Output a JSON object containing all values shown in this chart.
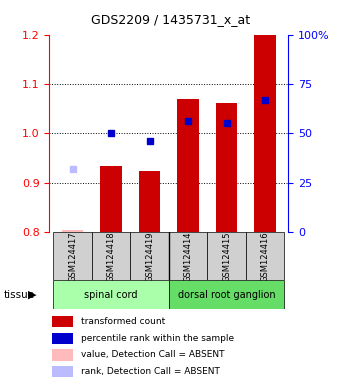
{
  "title": "GDS2209 / 1435731_x_at",
  "samples": [
    "GSM124417",
    "GSM124418",
    "GSM124419",
    "GSM124414",
    "GSM124415",
    "GSM124416"
  ],
  "tissue_groups": [
    {
      "label": "spinal cord",
      "start": 0,
      "end": 3,
      "color": "#aaffaa"
    },
    {
      "label": "dorsal root ganglion",
      "start": 3,
      "end": 6,
      "color": "#66dd66"
    }
  ],
  "red_values": [
    0.805,
    0.935,
    0.925,
    1.07,
    1.062,
    1.205
  ],
  "blue_values": [
    null,
    1.0,
    0.985,
    1.025,
    1.022,
    1.068
  ],
  "absent_red_idx": [
    0
  ],
  "absent_blue_idx": [
    0
  ],
  "absent_blue_val": 0.928,
  "ylim_left": [
    0.8,
    1.2
  ],
  "ylim_right": [
    0,
    100
  ],
  "yticks_left": [
    0.8,
    0.9,
    1.0,
    1.1,
    1.2
  ],
  "yticks_right": [
    0,
    25,
    50,
    75,
    100
  ],
  "bar_color": "#cc0000",
  "bar_bottom": 0.8,
  "bar_width": 0.55,
  "blue_marker_color": "#0000cc",
  "absent_red_color": "#ffbbbb",
  "absent_blue_color": "#bbbbff",
  "legend_items": [
    {
      "color": "#cc0000",
      "label": "transformed count"
    },
    {
      "color": "#0000cc",
      "label": "percentile rank within the sample"
    },
    {
      "color": "#ffbbbb",
      "label": "value, Detection Call = ABSENT"
    },
    {
      "color": "#bbbbff",
      "label": "rank, Detection Call = ABSENT"
    }
  ]
}
